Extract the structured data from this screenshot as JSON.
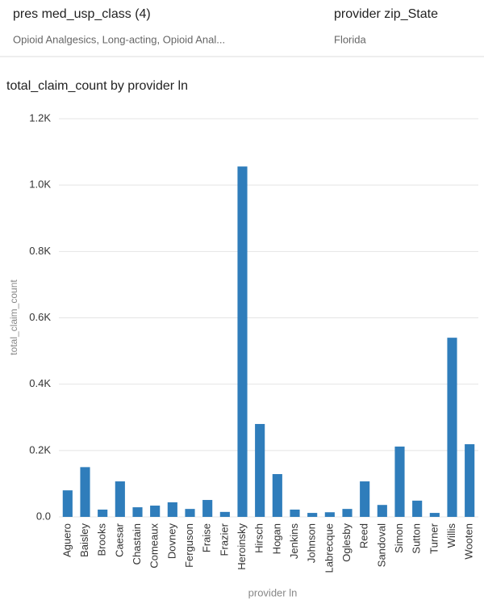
{
  "filters": [
    {
      "label": "pres med_usp_class (4)",
      "value": "Opioid Analgesics, Long-acting, Opioid Anal..."
    },
    {
      "label": "provider zip_State",
      "value": "Florida"
    }
  ],
  "chart_data": {
    "type": "bar",
    "title": "total_claim_count by provider ln",
    "x_label": "provider ln",
    "y_label": "total_claim_count",
    "categories": [
      "Aguero",
      "Baisley",
      "Brooks",
      "Caesar",
      "Chastain",
      "Comeaux",
      "Dovney",
      "Ferguson",
      "Fraise",
      "Frazier",
      "Heroinsky",
      "Hirsch",
      "Hogan",
      "Jenkins",
      "Johnson",
      "Labrecque",
      "Oglesby",
      "Reed",
      "Sandoval",
      "Simon",
      "Sutton",
      "Turner",
      "Willis",
      "Wooten"
    ],
    "values": [
      80,
      150,
      22,
      107,
      29,
      34,
      44,
      24,
      51,
      15,
      1056,
      280,
      129,
      22,
      12,
      14,
      24,
      107,
      36,
      212,
      49,
      12,
      540,
      219
    ],
    "color": "#2f7dbb",
    "ylim": [
      0,
      1200
    ],
    "yticks": [
      {
        "value": 0,
        "label": "0.0"
      },
      {
        "value": 200,
        "label": "0.2K"
      },
      {
        "value": 400,
        "label": "0.4K"
      },
      {
        "value": 600,
        "label": "0.6K"
      },
      {
        "value": 800,
        "label": "0.8K"
      },
      {
        "value": 1000,
        "label": "1.0K"
      },
      {
        "value": 1200,
        "label": "1.2K"
      }
    ],
    "grid": true
  }
}
